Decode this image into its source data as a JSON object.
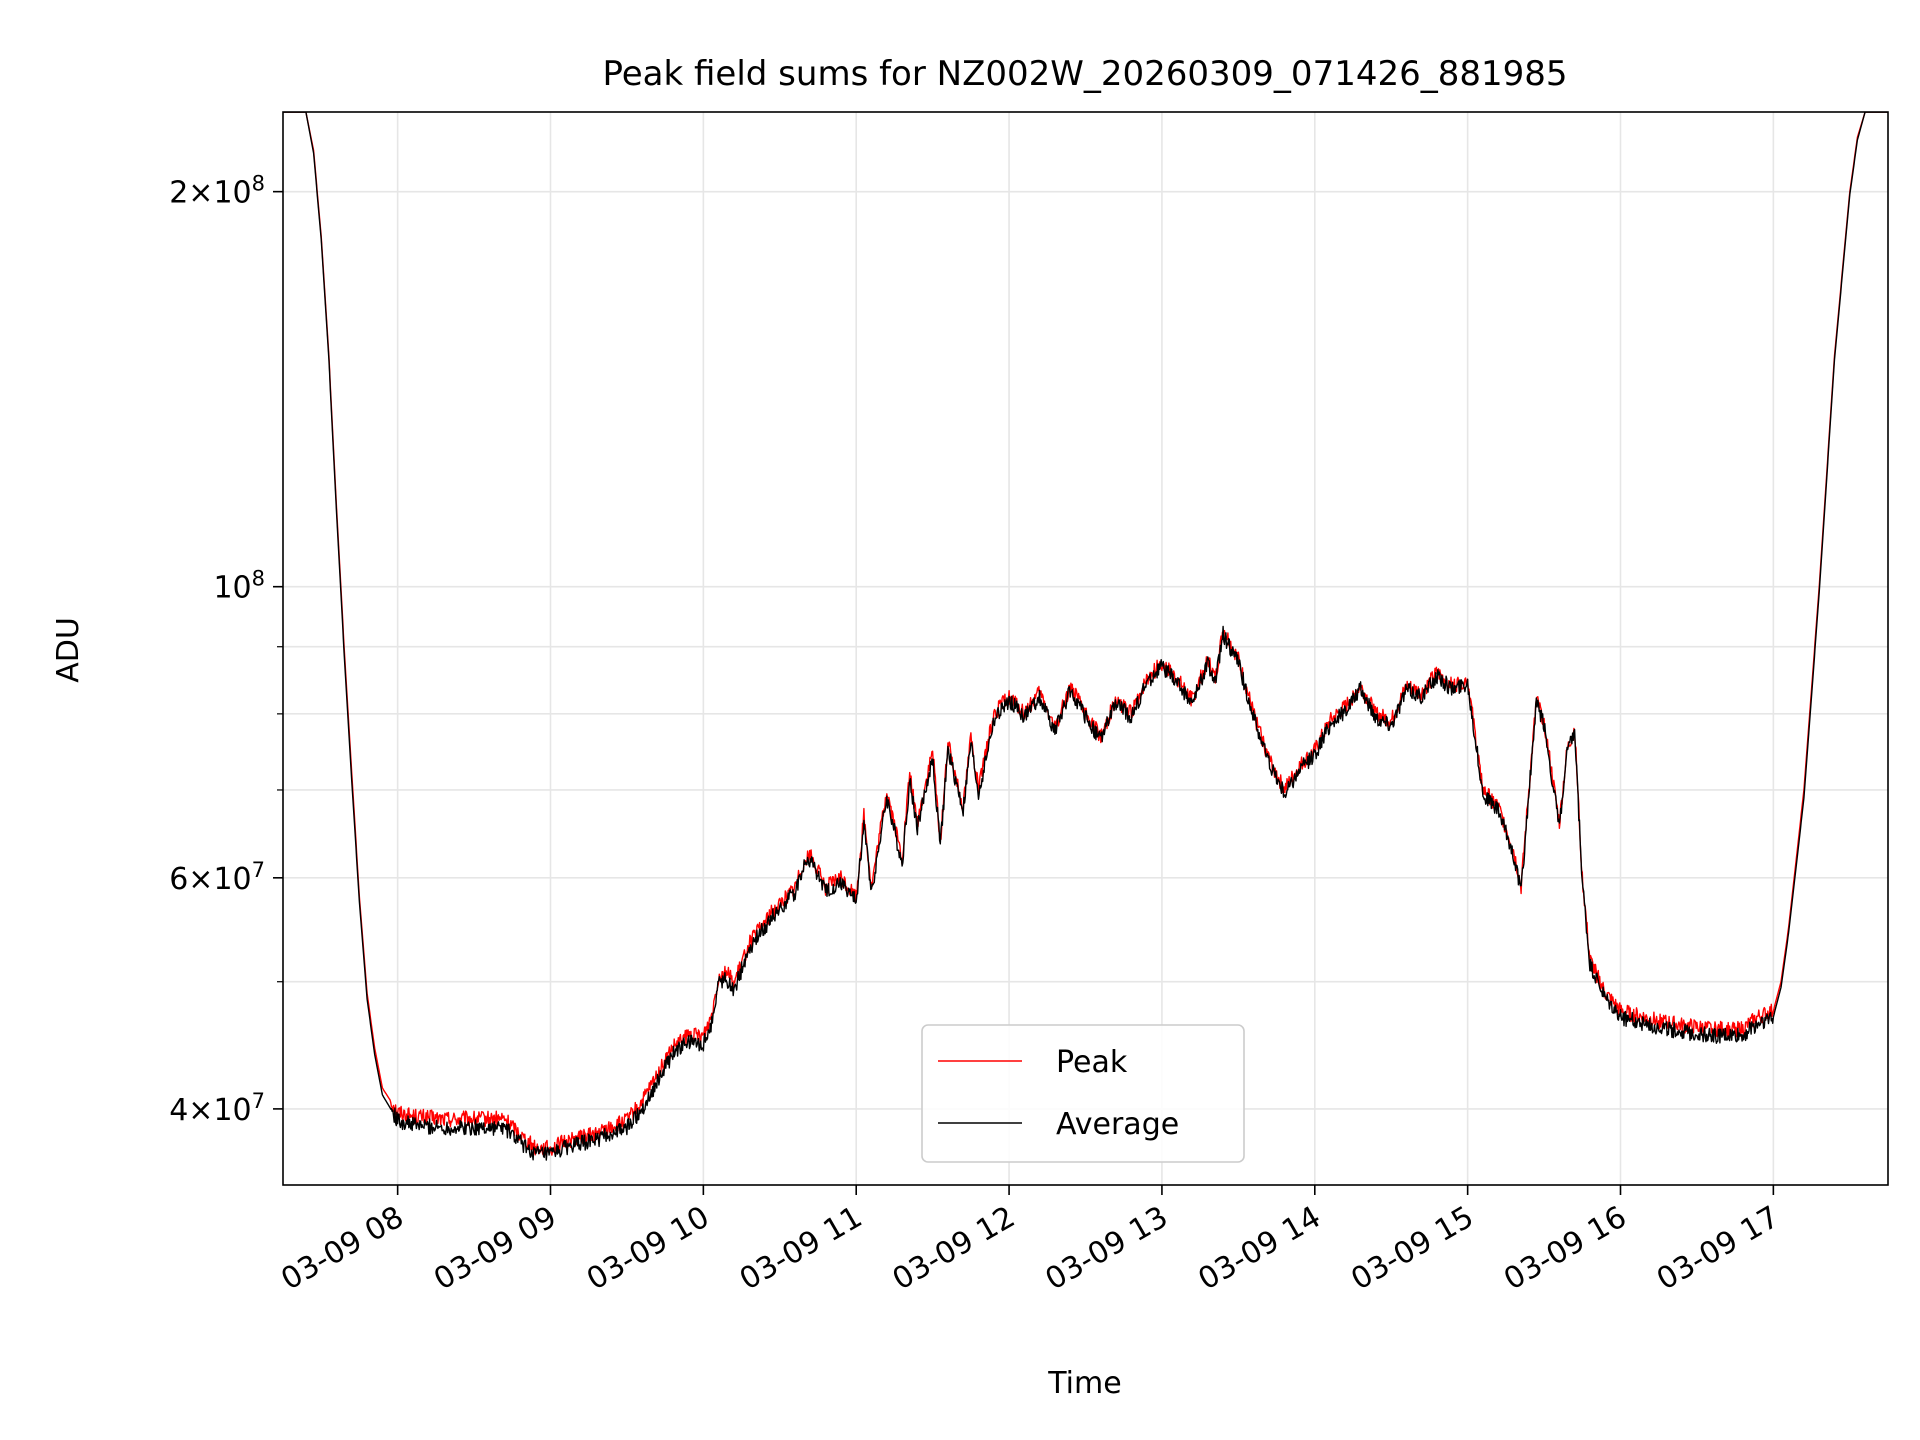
{
  "chart_data": {
    "type": "line",
    "title": "Peak field sums for NZ002W_20260309_071426_881985",
    "xlabel": "Time",
    "ylabel": "ADU",
    "yscale": "log",
    "ylim": [
      35000000,
      230000000
    ],
    "xlim_hours": [
      7.25,
      17.75
    ],
    "grid": true,
    "legend_position": "lower-center",
    "x_ticks": [
      {
        "value": 8,
        "label": "03-09 08"
      },
      {
        "value": 9,
        "label": "03-09 09"
      },
      {
        "value": 10,
        "label": "03-09 10"
      },
      {
        "value": 11,
        "label": "03-09 11"
      },
      {
        "value": 12,
        "label": "03-09 12"
      },
      {
        "value": 13,
        "label": "03-09 13"
      },
      {
        "value": 14,
        "label": "03-09 14"
      },
      {
        "value": 15,
        "label": "03-09 15"
      },
      {
        "value": 16,
        "label": "03-09 16"
      },
      {
        "value": 17,
        "label": "03-09 17"
      }
    ],
    "y_major_ticks": [
      {
        "value": 40000000,
        "mantissa": "4",
        "exp": "7"
      },
      {
        "value": 60000000,
        "mantissa": "6",
        "exp": "7"
      },
      {
        "value": 100000000,
        "mantissa": "",
        "exp": "8"
      },
      {
        "value": 200000000,
        "mantissa": "2",
        "exp": "8"
      }
    ],
    "y_minor_ticks": [
      50000000,
      70000000,
      80000000,
      90000000
    ],
    "series": [
      {
        "name": "Peak",
        "color": "#ff0000",
        "x_hours": [
          7.25,
          7.4,
          7.45,
          7.5,
          7.55,
          7.6,
          7.65,
          7.7,
          7.75,
          7.8,
          7.85,
          7.9,
          8.0,
          8.1,
          8.3,
          8.5,
          8.7,
          8.75,
          8.85,
          8.9,
          9.0,
          9.1,
          9.3,
          9.5,
          9.6,
          9.7,
          9.8,
          9.9,
          10.0,
          10.05,
          10.1,
          10.15,
          10.2,
          10.3,
          10.45,
          10.6,
          10.65,
          10.7,
          10.8,
          10.9,
          11.0,
          11.05,
          11.1,
          11.2,
          11.3,
          11.35,
          11.4,
          11.5,
          11.55,
          11.6,
          11.7,
          11.75,
          11.8,
          11.9,
          12.0,
          12.1,
          12.2,
          12.3,
          12.4,
          12.5,
          12.6,
          12.7,
          12.8,
          12.9,
          13.0,
          13.1,
          13.2,
          13.3,
          13.35,
          13.4,
          13.5,
          13.6,
          13.7,
          13.8,
          13.9,
          14.0,
          14.1,
          14.2,
          14.3,
          14.4,
          14.5,
          14.6,
          14.7,
          14.8,
          14.9,
          15.0,
          15.05,
          15.1,
          15.2,
          15.3,
          15.35,
          15.4,
          15.45,
          15.5,
          15.6,
          15.65,
          15.7,
          15.75,
          15.8,
          15.9,
          16.0,
          16.2,
          16.4,
          16.6,
          16.8,
          16.9,
          17.0,
          17.05,
          17.1,
          17.2,
          17.3,
          17.4,
          17.5,
          17.55,
          17.6,
          17.75
        ],
        "values": [
          230000000,
          230000000,
          215000000,
          185000000,
          150000000,
          115000000,
          90000000,
          72000000,
          58000000,
          49000000,
          44500000,
          41500000,
          39800000,
          39500000,
          39300000,
          39300000,
          39300000,
          38800000,
          37800000,
          37400000,
          37300000,
          37800000,
          38300000,
          39200000,
          40500000,
          42500000,
          44500000,
          45500000,
          45500000,
          47000000,
          50500000,
          51000000,
          49800000,
          53500000,
          56500000,
          59000000,
          61500000,
          62500000,
          59000000,
          60000000,
          58000000,
          67000000,
          59000000,
          70000000,
          62000000,
          72000000,
          66000000,
          75000000,
          64000000,
          76000000,
          68000000,
          77000000,
          70000000,
          80000000,
          82500000,
          80000000,
          83000000,
          78000000,
          84000000,
          80000000,
          77000000,
          82000000,
          80000000,
          85000000,
          87500000,
          85000000,
          82000000,
          88000000,
          85000000,
          93000000,
          88000000,
          80000000,
          74000000,
          70000000,
          73000000,
          75000000,
          79000000,
          81000000,
          84000000,
          80000000,
          79000000,
          84000000,
          83000000,
          86000000,
          84000000,
          85000000,
          77000000,
          70000000,
          68000000,
          63000000,
          59000000,
          70000000,
          82000000,
          79000000,
          66000000,
          75000000,
          78000000,
          60000000,
          52000000,
          49000000,
          47500000,
          46800000,
          46300000,
          46000000,
          46000000,
          47000000,
          47500000,
          50000000,
          55000000,
          70000000,
          100000000,
          150000000,
          200000000,
          220000000,
          230000000,
          230000000
        ]
      },
      {
        "name": "Average",
        "color": "#000000",
        "x_hours": [
          7.25,
          7.4,
          7.45,
          7.5,
          7.55,
          7.6,
          7.65,
          7.7,
          7.75,
          7.8,
          7.85,
          7.9,
          8.0,
          8.1,
          8.3,
          8.5,
          8.7,
          8.75,
          8.85,
          8.9,
          9.0,
          9.1,
          9.3,
          9.5,
          9.6,
          9.7,
          9.8,
          9.9,
          10.0,
          10.05,
          10.1,
          10.15,
          10.2,
          10.3,
          10.45,
          10.6,
          10.65,
          10.7,
          10.8,
          10.9,
          11.0,
          11.05,
          11.1,
          11.2,
          11.3,
          11.35,
          11.4,
          11.5,
          11.55,
          11.6,
          11.7,
          11.75,
          11.8,
          11.9,
          12.0,
          12.1,
          12.2,
          12.3,
          12.4,
          12.5,
          12.6,
          12.7,
          12.8,
          12.9,
          13.0,
          13.1,
          13.2,
          13.3,
          13.35,
          13.4,
          13.5,
          13.6,
          13.7,
          13.8,
          13.9,
          14.0,
          14.1,
          14.2,
          14.3,
          14.4,
          14.5,
          14.6,
          14.7,
          14.8,
          14.9,
          15.0,
          15.05,
          15.1,
          15.2,
          15.3,
          15.35,
          15.4,
          15.45,
          15.5,
          15.6,
          15.65,
          15.7,
          15.75,
          15.8,
          15.9,
          16.0,
          16.2,
          16.4,
          16.6,
          16.8,
          16.9,
          17.0,
          17.05,
          17.1,
          17.2,
          17.3,
          17.4,
          17.5,
          17.55,
          17.6,
          17.75
        ],
        "values": [
          230000000,
          230000000,
          214000000,
          184000000,
          149000000,
          114000000,
          89000000,
          71000000,
          57500000,
          48500000,
          44000000,
          41000000,
          39200000,
          38900000,
          38700000,
          38700000,
          38700000,
          38200000,
          37300000,
          37000000,
          36900000,
          37400000,
          37900000,
          38700000,
          40000000,
          42000000,
          44000000,
          45000000,
          44800000,
          46300000,
          50000000,
          50300000,
          49200000,
          53000000,
          56000000,
          58500000,
          61000000,
          62000000,
          58500000,
          59500000,
          57500000,
          66000000,
          58500000,
          69000000,
          61500000,
          71000000,
          65500000,
          74000000,
          63500000,
          75000000,
          67500000,
          76000000,
          69500000,
          79000000,
          82000000,
          79500000,
          82500000,
          77500000,
          83500000,
          79500000,
          76500000,
          81500000,
          79500000,
          84500000,
          87000000,
          84500000,
          81500000,
          87500000,
          84500000,
          92000000,
          87500000,
          79500000,
          73500000,
          69500000,
          72500000,
          74500000,
          78500000,
          80500000,
          83500000,
          79500000,
          78500000,
          83500000,
          82500000,
          85500000,
          83500000,
          84500000,
          76500000,
          69500000,
          67500000,
          62500000,
          58500000,
          69500000,
          81500000,
          78500000,
          65500000,
          74500000,
          77500000,
          59500000,
          51500000,
          48500000,
          47000000,
          46300000,
          45800000,
          45500000,
          45500000,
          46500000,
          47000000,
          49500000,
          54500000,
          69000000,
          99000000,
          149000000,
          199000000,
          219000000,
          230000000,
          230000000
        ]
      }
    ]
  }
}
